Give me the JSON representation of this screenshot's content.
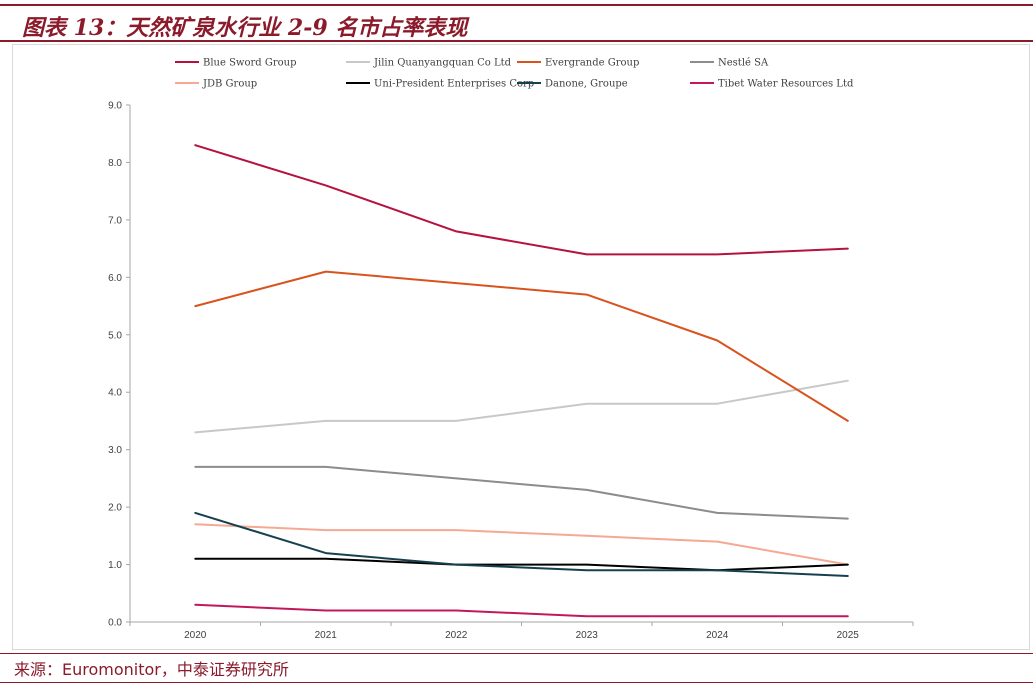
{
  "header": {
    "title": "图表 13：天然矿泉水行业 2-9 名市占率表现"
  },
  "footer": {
    "source": "来源：Euromonitor，中泰证券研究所"
  },
  "chart_data": {
    "type": "line",
    "x": [
      "2020",
      "2021",
      "2022",
      "2023",
      "2024",
      "2025"
    ],
    "y_ticks": [
      "0.0",
      "1.0",
      "2.0",
      "3.0",
      "4.0",
      "5.0",
      "6.0",
      "7.0",
      "8.0",
      "9.0"
    ],
    "ylim": [
      0,
      9
    ],
    "grid": false,
    "legend_position": "top",
    "series": [
      {
        "name": "Blue Sword Group",
        "color": "#b5123e",
        "values": [
          8.3,
          7.6,
          6.8,
          6.4,
          6.4,
          6.5
        ]
      },
      {
        "name": "Jilin Quanyangquan Co Ltd",
        "color": "#c8c8c8",
        "values": [
          3.3,
          3.5,
          3.5,
          3.8,
          3.8,
          4.2
        ]
      },
      {
        "name": "Evergrande Group",
        "color": "#d9531e",
        "values": [
          5.5,
          6.1,
          5.9,
          5.7,
          4.9,
          3.5
        ]
      },
      {
        "name": "Nestlé SA",
        "color": "#8c8c8c",
        "values": [
          2.7,
          2.7,
          2.5,
          2.3,
          1.9,
          1.8
        ]
      },
      {
        "name": "JDB Group",
        "color": "#f4a994",
        "values": [
          1.7,
          1.6,
          1.6,
          1.5,
          1.4,
          1.0
        ]
      },
      {
        "name": "Uni-President Enterprises Corp",
        "color": "#000000",
        "values": [
          1.1,
          1.1,
          1.0,
          1.0,
          0.9,
          1.0
        ]
      },
      {
        "name": "Danone, Groupe",
        "color": "#17404f",
        "values": [
          1.9,
          1.2,
          1.0,
          0.9,
          0.9,
          0.8
        ]
      },
      {
        "name": "Tibet Water Resources Ltd",
        "color": "#c2185b",
        "values": [
          0.3,
          0.2,
          0.2,
          0.1,
          0.1,
          0.1
        ]
      }
    ]
  }
}
